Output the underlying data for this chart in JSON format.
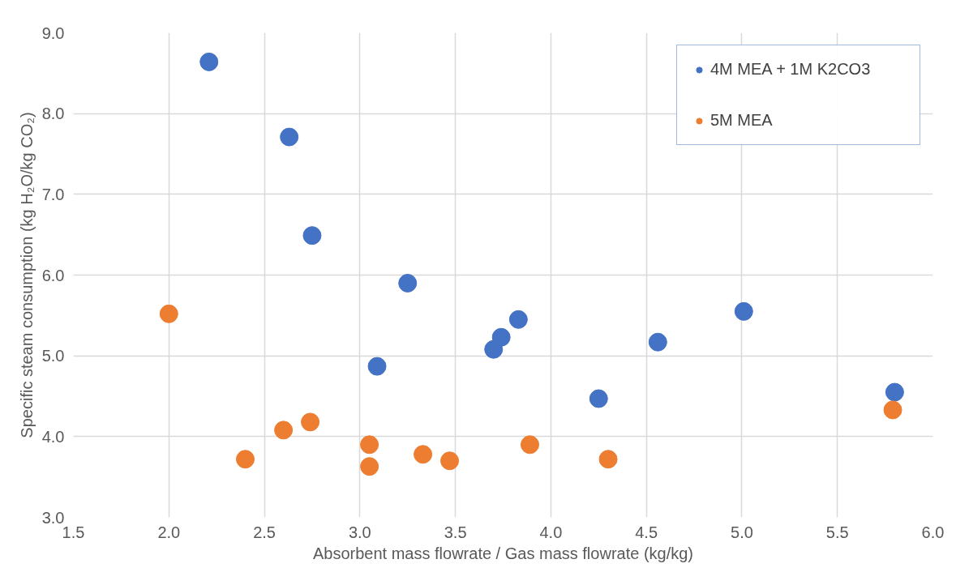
{
  "chart_data": {
    "type": "scatter",
    "xlabel": "Absorbent mass flowrate / Gas mass flowrate (kg/kg)",
    "ylabel": "Specific steam consumption (kg H₂O/kg CO₂)",
    "xlim": [
      1.5,
      6.0
    ],
    "ylim": [
      3.0,
      9.0
    ],
    "xticks": [
      {
        "value": 1.5,
        "label": "1.5"
      },
      {
        "value": 2,
        "label": "2.0"
      },
      {
        "value": 2.5,
        "label": "2.5"
      },
      {
        "value": 3,
        "label": "3.0"
      },
      {
        "value": 3.5,
        "label": "3.5"
      },
      {
        "value": 4,
        "label": "4.0"
      },
      {
        "value": 4.5,
        "label": "4.5"
      },
      {
        "value": 5,
        "label": "5.0"
      },
      {
        "value": 5.5,
        "label": "5.5"
      },
      {
        "value": 6,
        "label": "6.0"
      }
    ],
    "yticks": [
      {
        "value": 3,
        "label": "3.0"
      },
      {
        "value": 4,
        "label": "4.0"
      },
      {
        "value": 5,
        "label": "5.0"
      },
      {
        "value": 6,
        "label": "6.0"
      },
      {
        "value": 7,
        "label": "7.0"
      },
      {
        "value": 8,
        "label": "8.0"
      },
      {
        "value": 9,
        "label": "9.0"
      }
    ],
    "grid": true,
    "legend": "top right",
    "marker": "circle",
    "series": [
      {
        "name": "4M MEA + 1M K2CO3",
        "color": "#4472c4",
        "x": [
          2.21,
          2.63,
          2.75,
          3.25,
          3.09,
          3.7,
          3.74,
          3.83,
          4.25,
          4.56,
          5.01,
          5.8
        ],
        "values": [
          8.64,
          7.71,
          6.49,
          5.9,
          4.87,
          5.08,
          5.23,
          5.45,
          4.47,
          5.17,
          5.55,
          4.55
        ]
      },
      {
        "name": "5M MEA",
        "color": "#ed7d31",
        "x": [
          2.0,
          2.4,
          2.6,
          2.74,
          3.05,
          3.05,
          3.33,
          3.47,
          3.89,
          4.3,
          5.79
        ],
        "values": [
          5.52,
          3.72,
          4.08,
          4.18,
          3.9,
          3.63,
          3.78,
          3.7,
          3.9,
          3.72,
          4.33
        ]
      }
    ]
  }
}
